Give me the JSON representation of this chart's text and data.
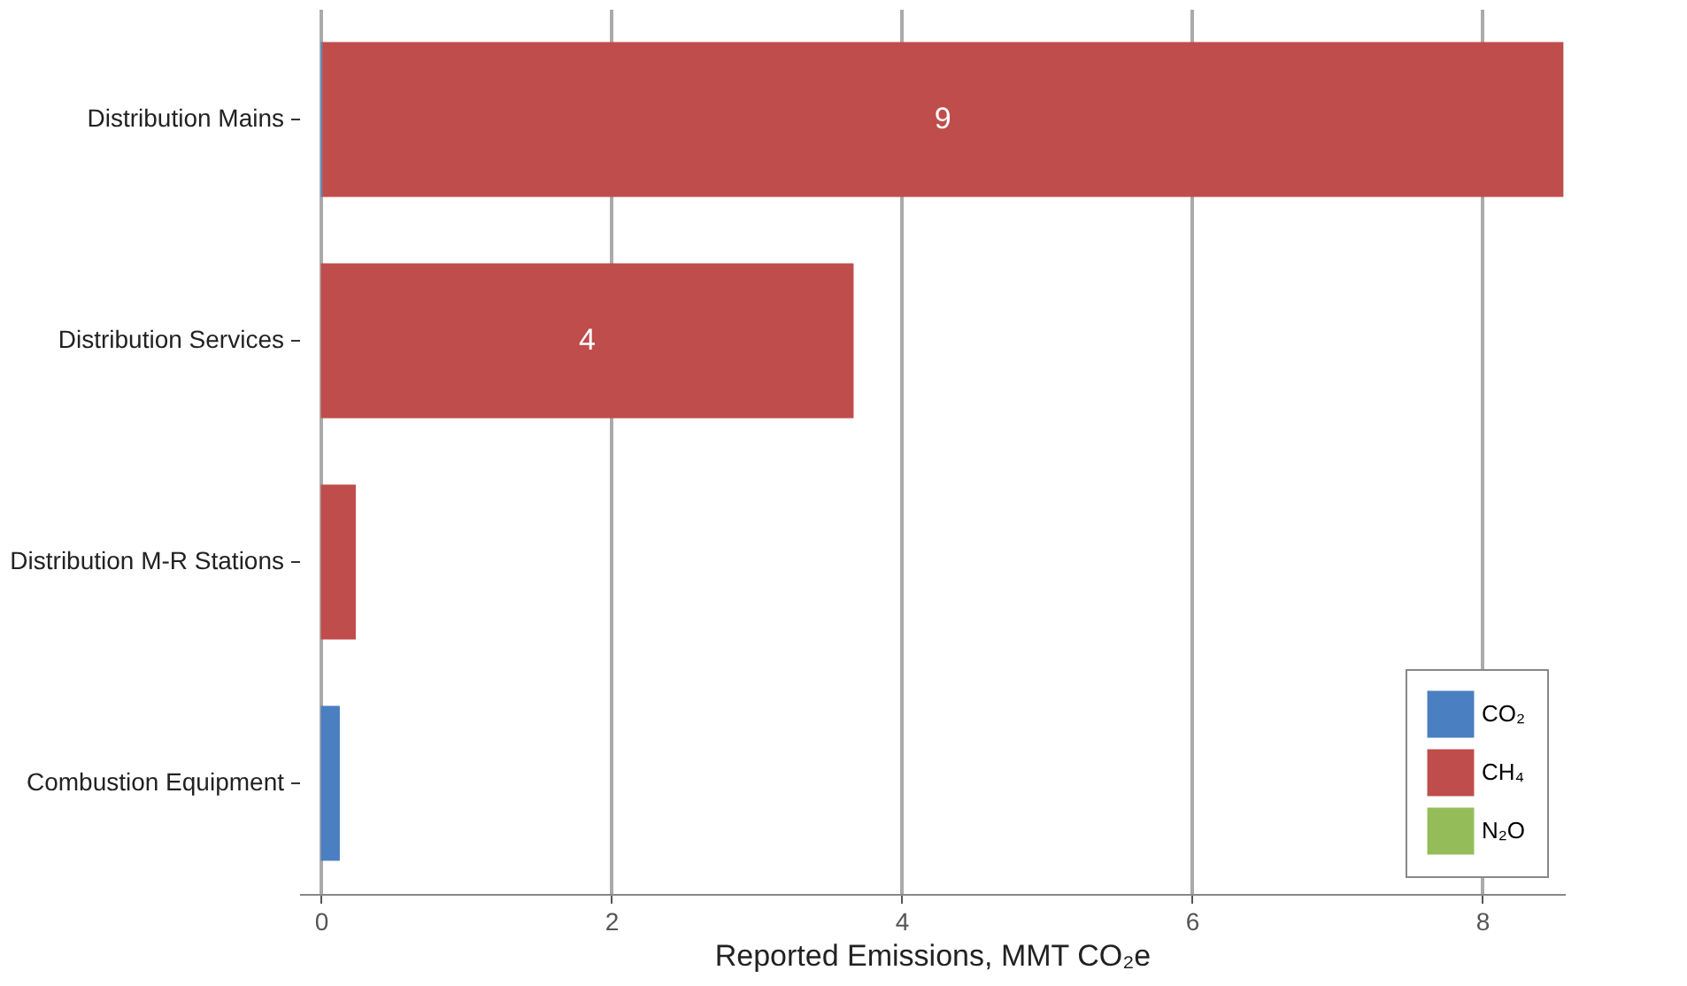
{
  "chart_data": {
    "type": "bar",
    "orientation": "horizontal",
    "stacked": true,
    "categories": [
      "Distribution Mains",
      "Distribution Services",
      "Distribution M-R Stations",
      "Combustion Equipment"
    ],
    "series": [
      {
        "name": "CO₂",
        "color": "#4a7fc1",
        "values": [
          0.01,
          null,
          null,
          0.13
        ]
      },
      {
        "name": "CH₄",
        "color": "#bf4d4b",
        "values": [
          8.55,
          3.67,
          0.24,
          null
        ],
        "value_labels": [
          "9",
          "4",
          null,
          null
        ]
      },
      {
        "name": "N₂O",
        "color": "#94bd5a",
        "values": [
          null,
          null,
          null,
          null
        ]
      }
    ],
    "xlabel": "Reported Emissions, MMT CO₂e",
    "xlim": [
      -0.15,
      8.57
    ],
    "xticks": [
      0,
      2,
      4,
      6,
      8
    ],
    "grid": "x",
    "legend": "bottom right"
  }
}
